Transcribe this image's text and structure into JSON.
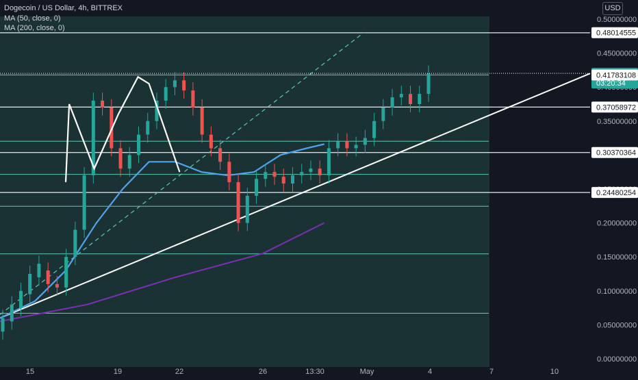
{
  "header": {
    "symbol_line": "Dogecoin / US Dollar, 4h, BITTREX",
    "ma50_label": "MA (50, close, 0)",
    "ma200_label": "MA (200, close, 0)",
    "currency": "USD"
  },
  "colors": {
    "background": "#131722",
    "shaded_area": "#1b3234",
    "level_line": "#5fc9b4",
    "up_candle": "#26a69a",
    "down_candle": "#ef5350",
    "ma50": "#4fa3ee",
    "ma200": "#7b2fb5",
    "trendline": "#ffffff",
    "current_price": "#26a69a"
  },
  "chart_data": {
    "type": "candlestick",
    "x_tick_labels": [
      "15",
      "19",
      "22",
      "26",
      "13:30",
      "May",
      "4",
      "7",
      "10"
    ],
    "y_tick_labels": [
      "0.50000000",
      "0.45000000",
      "0.40000000",
      "0.35000000",
      "0.30000000",
      "0.25000000",
      "0.20000000",
      "0.15000000",
      "0.10000000",
      "0.05000000",
      "0.00000000"
    ],
    "ylim": [
      0,
      0.5
    ],
    "price_labels": [
      {
        "value": 0.48014555,
        "text": "0.48014555",
        "style": "white"
      },
      {
        "value": 0.4202,
        "text": "0.42020000",
        "style": "current",
        "sub": "03:20:34"
      },
      {
        "value": 0.41783108,
        "text": "0.41783108",
        "style": "white"
      },
      {
        "value": 0.37058972,
        "text": "0.37058972",
        "style": "white"
      },
      {
        "value": 0.30370364,
        "text": "0.30370364",
        "style": "white"
      },
      {
        "value": 0.24480254,
        "text": "0.24480254",
        "style": "white"
      }
    ],
    "horizontal_levels": [
      0.48,
      0.4178,
      0.3706,
      0.3203,
      0.3037,
      0.2715,
      0.2448,
      0.2245,
      0.1545,
      0.067
    ],
    "white_levels": [
      0.48,
      0.42,
      0.3706,
      0.3037,
      0.2448
    ],
    "candle_keys": [
      [
        "15",
        0.04,
        0.06
      ],
      [
        "15",
        0.055,
        0.08
      ],
      [
        "15",
        0.075,
        0.1
      ],
      [
        "15",
        0.095,
        0.125
      ],
      [
        "15",
        0.12,
        0.14
      ],
      [
        "15",
        0.13,
        0.11
      ],
      [
        "15",
        0.11,
        0.105
      ],
      [
        "15",
        0.105,
        0.15
      ],
      [
        "15",
        0.15,
        0.19
      ],
      [
        "15",
        0.19,
        0.27
      ],
      [
        "16",
        0.27,
        0.38
      ],
      [
        "16",
        0.38,
        0.37
      ],
      [
        "16",
        0.37,
        0.31
      ],
      [
        "17",
        0.31,
        0.28
      ],
      [
        "17",
        0.28,
        0.3
      ],
      [
        "17",
        0.3,
        0.33
      ],
      [
        "18",
        0.33,
        0.35
      ],
      [
        "18",
        0.35,
        0.38
      ],
      [
        "19",
        0.38,
        0.4
      ],
      [
        "19",
        0.4,
        0.41
      ],
      [
        "20",
        0.41,
        0.395
      ],
      [
        "20",
        0.395,
        0.37
      ],
      [
        "21",
        0.37,
        0.33
      ],
      [
        "21",
        0.33,
        0.31
      ],
      [
        "22",
        0.31,
        0.29
      ],
      [
        "22",
        0.29,
        0.26
      ],
      [
        "23",
        0.26,
        0.2
      ],
      [
        "23",
        0.2,
        0.24
      ],
      [
        "24",
        0.24,
        0.265
      ],
      [
        "24",
        0.265,
        0.275
      ],
      [
        "25",
        0.275,
        0.268
      ],
      [
        "25",
        0.268,
        0.258
      ],
      [
        "26",
        0.258,
        0.27
      ],
      [
        "26",
        0.27,
        0.275
      ],
      [
        "27",
        0.275,
        0.28
      ],
      [
        "27",
        0.28,
        0.27
      ],
      [
        "28",
        0.27,
        0.31
      ],
      [
        "28",
        0.31,
        0.32
      ],
      [
        "29",
        0.32,
        0.31
      ],
      [
        "29",
        0.31,
        0.315
      ],
      [
        "30",
        0.315,
        0.325
      ],
      [
        "30",
        0.325,
        0.35
      ],
      [
        "May",
        0.35,
        0.37
      ],
      [
        "May",
        0.37,
        0.385
      ],
      [
        "2",
        0.385,
        0.39
      ],
      [
        "2",
        0.39,
        0.375
      ],
      [
        "3",
        0.375,
        0.39
      ],
      [
        "3",
        0.39,
        0.42
      ]
    ],
    "ma50": [
      [
        0,
        0.06
      ],
      [
        0.08,
        0.085
      ],
      [
        0.15,
        0.13
      ],
      [
        0.22,
        0.2
      ],
      [
        0.28,
        0.25
      ],
      [
        0.34,
        0.29
      ],
      [
        0.4,
        0.29
      ],
      [
        0.46,
        0.275
      ],
      [
        0.52,
        0.27
      ],
      [
        0.58,
        0.275
      ],
      [
        0.64,
        0.3
      ],
      [
        0.7,
        0.31
      ],
      [
        0.74,
        0.316
      ]
    ],
    "ma200": [
      [
        0,
        0.055
      ],
      [
        0.2,
        0.08
      ],
      [
        0.4,
        0.12
      ],
      [
        0.6,
        0.155
      ],
      [
        0.74,
        0.2
      ]
    ],
    "trendline": [
      [
        0,
        0.06
      ],
      [
        1,
        0.42
      ]
    ],
    "dashed_channel": [
      [
        0,
        0.065
      ],
      [
        0.83,
        0.48
      ]
    ]
  }
}
